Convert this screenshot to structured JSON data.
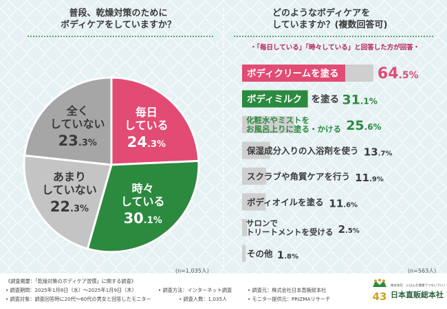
{
  "left": {
    "title_line1": "普段、乾燥対策のために",
    "title_line2": "ボディケアをしていますか？",
    "n": "(n=1,035人)"
  },
  "right": {
    "title_line1": "どのようなボディケアを",
    "title_line2": "していますか？(複数回答可)",
    "subtitle": "・「毎日している」「時々している」と回答した方が回答・",
    "n": "(n=563人)"
  },
  "colors": {
    "daily": "#e24b73",
    "sometimes": "#2b8a3e",
    "rarely": "#c4c4c4",
    "never": "#a6a6a6",
    "bar_gray": "#cfcfcf",
    "value_text": "#3a3a3a"
  },
  "chart_data": [
    {
      "type": "pie",
      "title": "普段、乾燥対策のためにボディケアをしていますか？",
      "unit": "%",
      "start": "top, clockwise",
      "slices": [
        {
          "label_l1": "毎日",
          "label_l2": "している",
          "value": 24.3,
          "value_int": "24",
          "value_dec": ".3%",
          "color": "#e24b73",
          "text_color": "#ffffff"
        },
        {
          "label_l1": "時々",
          "label_l2": "している",
          "value": 30.1,
          "value_int": "30",
          "value_dec": ".1%",
          "color": "#2b8a3e",
          "text_color": "#ffffff"
        },
        {
          "label_l1": "あまり",
          "label_l2": "していない",
          "value": 22.3,
          "value_int": "22",
          "value_dec": ".3%",
          "color": "#c4c4c4",
          "text_color": "#3a3a3a"
        },
        {
          "label_l1": "全く",
          "label_l2": "していない",
          "value": 23.3,
          "value_int": "23",
          "value_dec": ".3%",
          "color": "#a6a6a6",
          "text_color": "#3a3a3a"
        }
      ]
    },
    {
      "type": "bar",
      "orientation": "horizontal",
      "title": "どのようなボディケアをしていますか？(複数回答可)",
      "unit": "%",
      "xlim": [
        0,
        100
      ],
      "bars": [
        {
          "label": "ボディクリームを塗る",
          "label2": "",
          "value": 64.5,
          "value_int": "64",
          "value_dec": ".5%",
          "highlight": "pink"
        },
        {
          "label": "ボディミルク",
          "label2": "を塗る",
          "value": 31.1,
          "value_int": "31",
          "value_dec": ".1%",
          "highlight": "green"
        },
        {
          "label": "化粧水やミストを",
          "label2": "お風呂上りに塗る・かける",
          "value": 25.6,
          "value_int": "25",
          "value_dec": ".6%",
          "highlight": "none"
        },
        {
          "label": "保湿成分入りの入浴剤を使う",
          "label2": "",
          "value": 13.7,
          "value_int": "13",
          "value_dec": ".7%",
          "highlight": "none"
        },
        {
          "label": "スクラブや角質ケアを行う",
          "label2": "",
          "value": 11.9,
          "value_int": "11",
          "value_dec": ".9%",
          "highlight": "none"
        },
        {
          "label": "ボディオイルを塗る",
          "label2": "",
          "value": 11.6,
          "value_int": "11",
          "value_dec": ".6%",
          "highlight": "none"
        },
        {
          "label": "サロンで",
          "label2": "トリートメントを受ける",
          "value": 2.5,
          "value_int": "2",
          "value_dec": ".5%",
          "highlight": "none"
        },
        {
          "label": "その他",
          "label2": "",
          "value": 1.8,
          "value_int": "1",
          "value_dec": ".8%",
          "highlight": "none"
        }
      ]
    }
  ],
  "footer": {
    "line1": "《調査概要：「乾燥対策のボディケア習慣」に関する調査》",
    "period": "• 調査期間：2025年1月8日（水）〜2025年1月9日（木）",
    "method": "• 調査方法：インターネット調査",
    "source": "• 調査元：株式会社日本直販総本社",
    "target": "• 調査対象：調査回答時に20代〜60代の男女と回答したモニター",
    "count": "• 調査人数：1,035人",
    "monitor": "• モニター提供元：PRIZMAリサーチ"
  },
  "logo": {
    "tagline": "株式会社　にほんを健康でつないでいく",
    "name": "日本直販総本社"
  }
}
